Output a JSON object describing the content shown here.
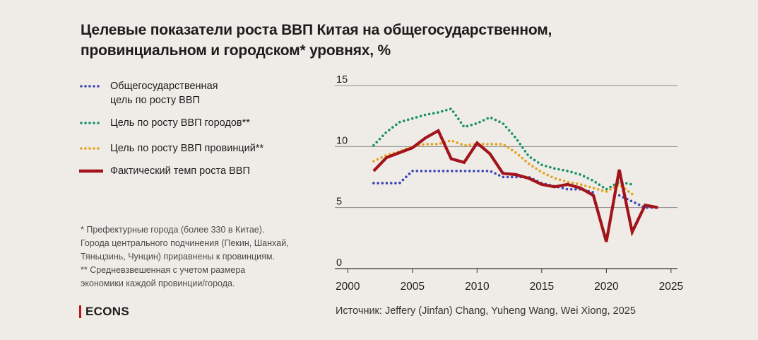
{
  "title_line1": "Целевые показатели роста ВВП Китая на общегосударственном,",
  "title_line2": "провинциальном и городском* уровнях, %",
  "legend": [
    {
      "label_line1": "Общегосударственная",
      "label_line2": "цель по росту ВВП",
      "color": "#3c47b8",
      "style": "dotted"
    },
    {
      "label_line1": "Цель по росту ВВП городов**",
      "label_line2": "",
      "color": "#17906a",
      "style": "dotted"
    },
    {
      "label_line1": "Цель по росту ВВП провинций**",
      "label_line2": "",
      "color": "#e3a21a",
      "style": "dotted"
    },
    {
      "label_line1": "Фактический темп роста ВВП",
      "label_line2": "",
      "color": "#a3131b",
      "style": "solid"
    }
  ],
  "footnotes": [
    "* Префектурные города (более 330 в Китае).",
    "Города центрального подчинения (Пекин, Шанхай,",
    "Тяньцзинь, Чунцин) приравнены к провинциям.",
    "** Средневзвешенная с учетом размера",
    "экономики каждой провинции/города."
  ],
  "brand": "ECONS",
  "source": "Источник: Jeffery (Jinfan) Chang, Yuheng Wang, Wei Xiong, 2025",
  "chart_data": {
    "type": "line",
    "xlim": [
      1999,
      2025.5
    ],
    "ylim": [
      0,
      15
    ],
    "x_ticks": [
      2000,
      2005,
      2010,
      2015,
      2020,
      2025
    ],
    "y_ticks": [
      0,
      5,
      10,
      15
    ],
    "grid": "horizontal",
    "legend_position": "left",
    "series": [
      {
        "name": "Общегосударственная цель по росту ВВП",
        "color": "#3c47b8",
        "style": "dotted",
        "x": [
          2002,
          2003,
          2004,
          2005,
          2006,
          2007,
          2008,
          2009,
          2010,
          2011,
          2012,
          2013,
          2014,
          2015,
          2016,
          2017,
          2018,
          2019,
          2020,
          2021,
          2022,
          2023,
          2024
        ],
        "y": [
          7,
          7,
          7,
          8,
          8,
          8,
          8,
          8,
          8,
          8,
          7.5,
          7.5,
          7.5,
          7,
          6.75,
          6.5,
          6.5,
          6.25,
          null,
          6,
          5.5,
          5,
          5
        ]
      },
      {
        "name": "Цель по росту ВВП городов**",
        "color": "#17906a",
        "style": "dotted",
        "x": [
          2002,
          2003,
          2004,
          2005,
          2006,
          2007,
          2008,
          2009,
          2010,
          2011,
          2012,
          2013,
          2014,
          2015,
          2016,
          2017,
          2018,
          2019,
          2020,
          2021,
          2022
        ],
        "y": [
          10.1,
          11.2,
          12,
          12.3,
          12.6,
          12.8,
          13.1,
          11.6,
          11.9,
          12.4,
          11.9,
          10.7,
          9.2,
          8.5,
          8.2,
          8,
          7.7,
          7.2,
          6.5,
          7.1,
          6.9
        ]
      },
      {
        "name": "Цель по росту ВВП провинций**",
        "color": "#e3a21a",
        "style": "dotted",
        "x": [
          2002,
          2003,
          2004,
          2005,
          2006,
          2007,
          2008,
          2009,
          2010,
          2011,
          2012,
          2013,
          2014,
          2015,
          2016,
          2017,
          2018,
          2019,
          2020,
          2021,
          2022
        ],
        "y": [
          8.8,
          9.3,
          9.6,
          10,
          10.2,
          10.2,
          10.5,
          10.1,
          10.2,
          10.2,
          10.2,
          9.5,
          8.6,
          7.9,
          7.4,
          7.1,
          6.9,
          6.6,
          6.3,
          6.9,
          6.1
        ]
      },
      {
        "name": "Фактический темп роста ВВП",
        "color": "#a3131b",
        "style": "solid",
        "x": [
          2002,
          2003,
          2004,
          2005,
          2006,
          2007,
          2008,
          2009,
          2010,
          2011,
          2012,
          2013,
          2014,
          2015,
          2016,
          2017,
          2018,
          2019,
          2020,
          2021,
          2022,
          2023,
          2024
        ],
        "y": [
          8.0,
          9.1,
          9.5,
          9.9,
          10.7,
          11.3,
          9.0,
          8.7,
          10.3,
          9.4,
          7.8,
          7.7,
          7.4,
          6.9,
          6.7,
          6.9,
          6.6,
          6.0,
          2.2,
          8.1,
          3.0,
          5.2,
          5.0
        ]
      }
    ]
  }
}
